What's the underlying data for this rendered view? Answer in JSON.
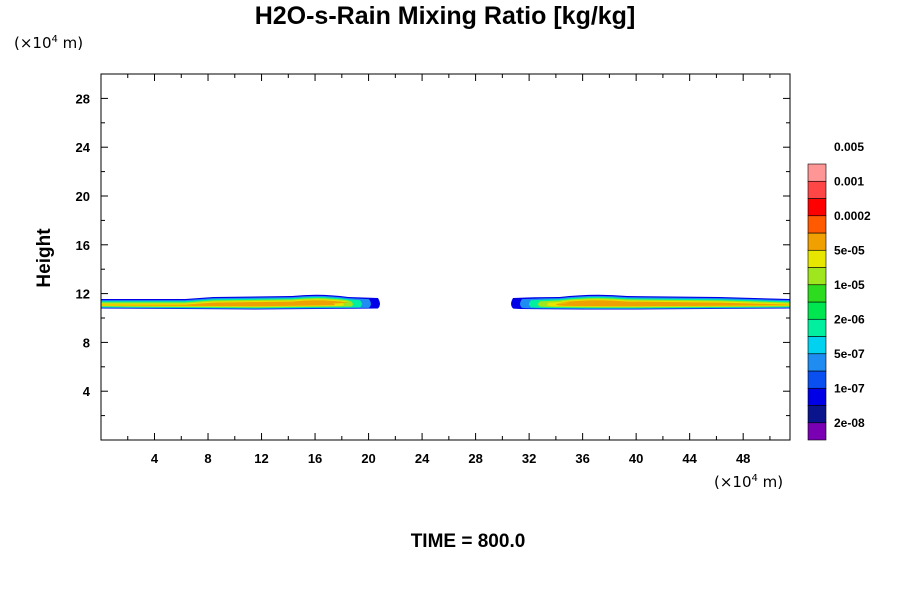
{
  "chart_data": {
    "type": "contour",
    "title": "H2O-s-Rain Mixing Ratio [kg/kg]",
    "ylabel": "Height",
    "xunit": {
      "prefix": "(×10",
      "exp": "4",
      "suffix": " m)"
    },
    "yunit": {
      "prefix": "(×10",
      "exp": "4",
      "suffix": " m)"
    },
    "xlim": [
      0,
      51.5
    ],
    "ylim": [
      0,
      30
    ],
    "xticks": [
      4,
      8,
      12,
      16,
      20,
      24,
      28,
      32,
      36,
      40,
      44,
      48
    ],
    "yticks": [
      4,
      8,
      12,
      16,
      20,
      24,
      28
    ],
    "colorbar": {
      "colors": [
        "#7a00b4",
        "#0a148c",
        "#0000e6",
        "#0a50f0",
        "#1e8cf0",
        "#00d2f0",
        "#00f0a0",
        "#00e650",
        "#2ddc1e",
        "#a0e61e",
        "#e6e600",
        "#f0a000",
        "#ff5a00",
        "#ff0000",
        "#ff4646",
        "#ff9696"
      ],
      "labels": [
        "2e-08",
        "1e-07",
        "5e-07",
        "2e-06",
        "1e-05",
        "5e-05",
        "0.0002",
        "0.001",
        "0.005"
      ]
    },
    "features": [
      {
        "x_start": 0,
        "x_end": 21,
        "y_bottom": 10.7,
        "y_top": 11.8,
        "core_y": 11.1
      },
      {
        "x_start": 30.5,
        "x_end": 51.5,
        "y_bottom": 10.7,
        "y_top": 11.8,
        "core_y": 11.1
      }
    ]
  },
  "footer": {
    "time_label": "TIME = 800.0"
  }
}
